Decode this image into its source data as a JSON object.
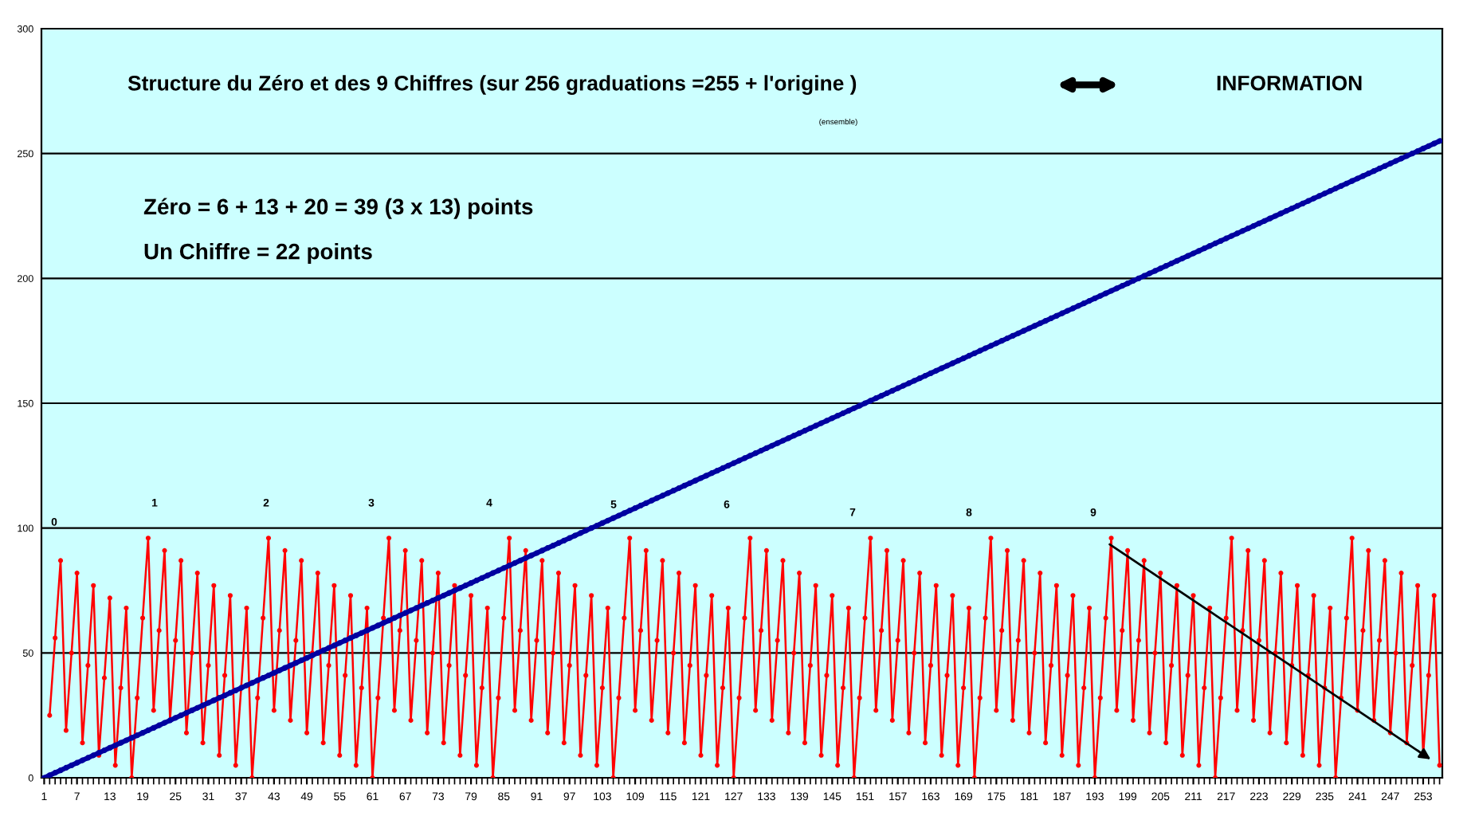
{
  "chart_data": {
    "type": "line",
    "categories": [
      "1",
      null,
      null,
      null,
      null,
      null,
      "7",
      null,
      null,
      null,
      null,
      null,
      "13",
      null,
      null,
      null,
      null,
      null,
      "19",
      null,
      null,
      null,
      null,
      null,
      "25",
      null,
      null,
      null,
      null,
      null,
      "31",
      null,
      null,
      null,
      null,
      null,
      "37",
      null,
      null,
      null,
      null,
      null,
      "43",
      null,
      null,
      null,
      null,
      null,
      "49",
      null,
      null,
      null,
      null,
      null,
      "55",
      null,
      null,
      null,
      null,
      null,
      "61",
      null,
      null,
      null,
      null,
      null,
      "67",
      null,
      null,
      null,
      null,
      null,
      "73",
      null,
      null,
      null,
      null,
      null,
      "79",
      null,
      null,
      null,
      null,
      null,
      "85",
      null,
      null,
      null,
      null,
      null,
      "91",
      null,
      null,
      null,
      null,
      null,
      "97",
      null,
      null,
      null,
      null,
      null,
      "103",
      null,
      null,
      null,
      null,
      null,
      "109",
      null,
      null,
      null,
      null,
      null,
      "115",
      null,
      null,
      null,
      null,
      null,
      "121",
      null,
      null,
      null,
      null,
      null,
      "127",
      null,
      null,
      null,
      null,
      null,
      "133",
      null,
      null,
      null,
      null,
      null,
      "139",
      null,
      null,
      null,
      null,
      null,
      "145",
      null,
      null,
      null,
      null,
      null,
      "151",
      null,
      null,
      null,
      null,
      null,
      "157",
      null,
      null,
      null,
      null,
      null,
      "163",
      null,
      null,
      null,
      null,
      null,
      "169",
      null,
      null,
      null,
      null,
      null,
      "175",
      null,
      null,
      null,
      null,
      null,
      "181",
      null,
      null,
      null,
      null,
      null,
      "187",
      null,
      null,
      null,
      null,
      null,
      "193",
      null,
      null,
      null,
      null,
      null,
      "199",
      null,
      null,
      null,
      null,
      null,
      "205",
      null,
      null,
      null,
      null,
      null,
      "211",
      null,
      null,
      null,
      null,
      null,
      "217",
      null,
      null,
      null,
      null,
      null,
      "223",
      null,
      null,
      null,
      null,
      null,
      "229",
      null,
      null,
      null,
      null,
      null,
      "235",
      null,
      null,
      null,
      null,
      null,
      "241",
      null,
      null,
      null,
      null,
      null,
      "247",
      null,
      null,
      null,
      null,
      null,
      "253",
      null,
      null,
      null
    ],
    "series": [
      {
        "color": "#ff0000",
        "marker": "circle",
        "values": [
          null,
          25,
          56,
          87,
          19,
          50,
          82,
          14,
          45,
          77,
          9,
          40,
          72,
          5,
          36,
          68,
          0,
          32,
          64,
          96,
          27,
          59,
          91,
          23,
          55,
          87,
          18,
          50,
          82,
          14,
          45,
          77,
          9,
          41,
          73,
          5,
          36,
          68,
          0,
          32,
          64,
          96,
          27,
          59,
          91,
          23,
          55,
          87,
          18,
          50,
          82,
          14,
          45,
          77,
          9,
          41,
          73,
          5,
          36,
          68,
          0,
          32,
          64,
          96,
          27,
          59,
          91,
          23,
          55,
          87,
          18,
          50,
          82,
          14,
          45,
          77,
          9,
          41,
          73,
          5,
          36,
          68,
          0,
          32,
          64,
          96,
          27,
          59,
          91,
          23,
          55,
          87,
          18,
          50,
          82,
          14,
          45,
          77,
          9,
          41,
          73,
          5,
          36,
          68,
          0,
          32,
          64,
          96,
          27,
          59,
          91,
          23,
          55,
          87,
          18,
          50,
          82,
          14,
          45,
          77,
          9,
          41,
          73,
          5,
          36,
          68,
          0,
          32,
          64,
          96,
          27,
          59,
          91,
          23,
          55,
          87,
          18,
          50,
          82,
          14,
          45,
          77,
          9,
          41,
          73,
          5,
          36,
          68,
          0,
          32,
          64,
          96,
          27,
          59,
          91,
          23,
          55,
          87,
          18,
          50,
          82,
          14,
          45,
          77,
          9,
          41,
          73,
          5,
          36,
          68,
          0,
          32,
          64,
          96,
          27,
          59,
          91,
          23,
          55,
          87,
          18,
          50,
          82,
          14,
          45,
          77,
          9,
          41,
          73,
          5,
          36,
          68,
          0,
          32,
          64,
          96,
          27,
          59,
          91,
          23,
          55,
          87,
          18,
          50,
          82,
          14,
          45,
          77,
          9,
          41,
          73,
          5,
          36,
          68,
          0,
          32,
          64,
          96,
          27,
          59,
          91,
          23,
          55,
          87,
          18,
          50,
          82,
          14,
          45,
          77,
          9,
          41,
          73,
          5,
          36,
          68,
          0,
          32,
          64,
          96,
          27,
          59,
          91,
          23,
          55,
          87,
          18,
          50,
          82,
          14,
          45,
          77,
          9,
          41,
          73,
          5
        ]
      },
      {
        "color": "#0000a0",
        "marker": "circle",
        "values": [
          0,
          1,
          2,
          3,
          4,
          5,
          6,
          7,
          8,
          9,
          10,
          11,
          12,
          13,
          14,
          15,
          16,
          17,
          18,
          19,
          20,
          21,
          22,
          23,
          24,
          25,
          26,
          27,
          28,
          29,
          30,
          31,
          32,
          33,
          34,
          35,
          36,
          37,
          38,
          39,
          40,
          41,
          42,
          43,
          44,
          45,
          46,
          47,
          48,
          49,
          50,
          51,
          52,
          53,
          54,
          55,
          56,
          57,
          58,
          59,
          60,
          61,
          62,
          63,
          64,
          65,
          66,
          67,
          68,
          69,
          70,
          71,
          72,
          73,
          74,
          75,
          76,
          77,
          78,
          79,
          80,
          81,
          82,
          83,
          84,
          85,
          86,
          87,
          88,
          89,
          90,
          91,
          92,
          93,
          94,
          95,
          96,
          97,
          98,
          99,
          100,
          101,
          102,
          103,
          104,
          105,
          106,
          107,
          108,
          109,
          110,
          111,
          112,
          113,
          114,
          115,
          116,
          117,
          118,
          119,
          120,
          121,
          122,
          123,
          124,
          125,
          126,
          127,
          128,
          129,
          130,
          131,
          132,
          133,
          134,
          135,
          136,
          137,
          138,
          139,
          140,
          141,
          142,
          143,
          144,
          145,
          146,
          147,
          148,
          149,
          150,
          151,
          152,
          153,
          154,
          155,
          156,
          157,
          158,
          159,
          160,
          161,
          162,
          163,
          164,
          165,
          166,
          167,
          168,
          169,
          170,
          171,
          172,
          173,
          174,
          175,
          176,
          177,
          178,
          179,
          180,
          181,
          182,
          183,
          184,
          185,
          186,
          187,
          188,
          189,
          190,
          191,
          192,
          193,
          194,
          195,
          196,
          197,
          198,
          199,
          200,
          201,
          202,
          203,
          204,
          205,
          206,
          207,
          208,
          209,
          210,
          211,
          212,
          213,
          214,
          215,
          216,
          217,
          218,
          219,
          220,
          221,
          222,
          223,
          224,
          225,
          226,
          227,
          228,
          229,
          230,
          231,
          232,
          233,
          234,
          235,
          236,
          237,
          238,
          239,
          240,
          241,
          242,
          243,
          244,
          245,
          246,
          247,
          248,
          249,
          250,
          251,
          252,
          253,
          254,
          255
        ]
      }
    ],
    "ylim": [
      0,
      300
    ],
    "yticks": [
      0,
      50,
      100,
      150,
      200,
      250,
      300
    ],
    "grid": "y",
    "annotations": [
      "Structure du Zéro et des 9 Chiffres (sur 256 graduations =255 + l'origine )",
      "(ensemble)",
      "INFORMATION",
      "Zéro = 6 + 13 + 20 = 39 (3 x 13) points",
      "Un Chiffre = 22 points",
      "0",
      "1",
      "2",
      "3",
      "4",
      "5",
      "6",
      "7",
      "8",
      "9"
    ]
  }
}
